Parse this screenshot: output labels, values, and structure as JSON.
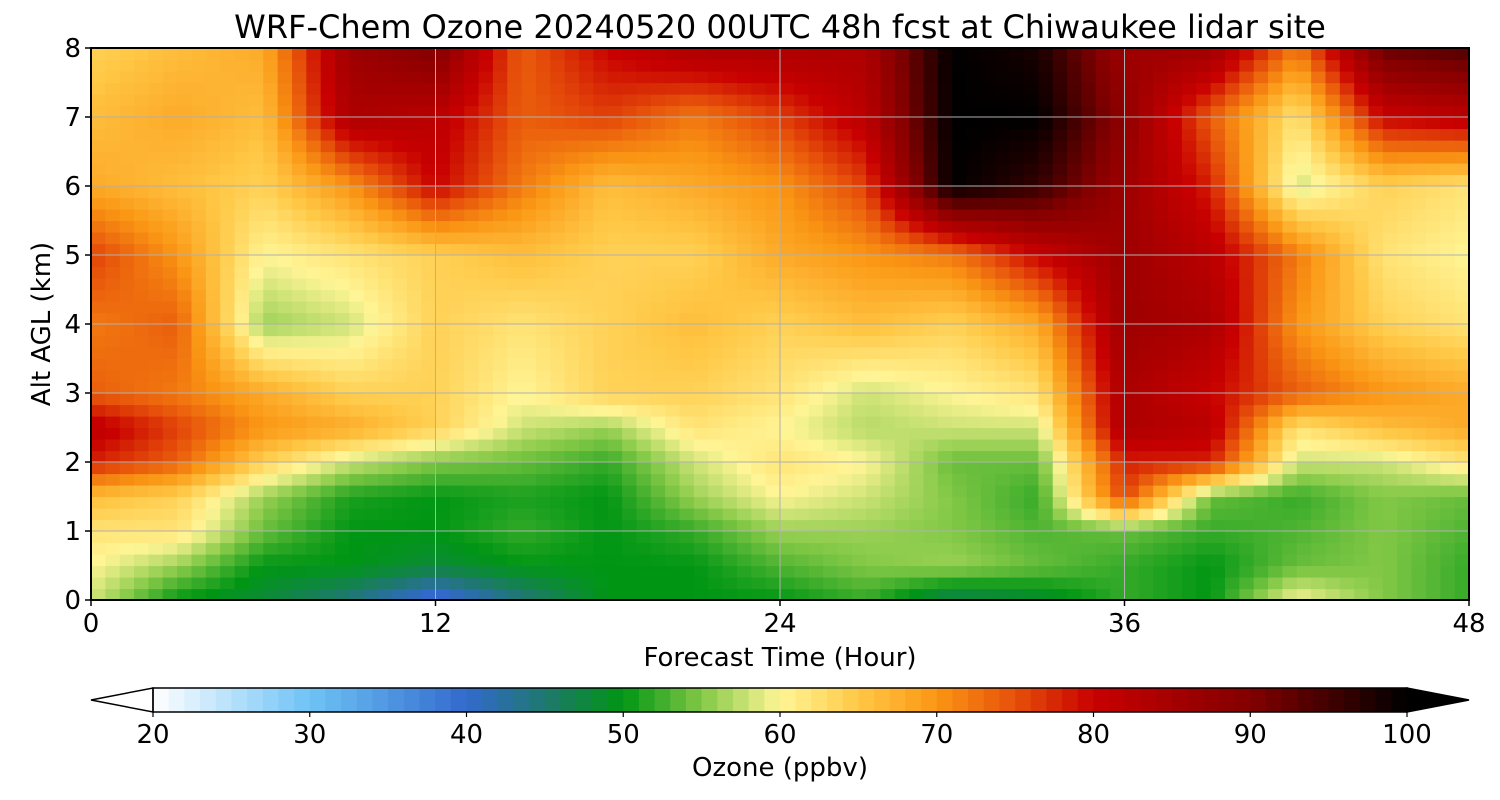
{
  "chart_data": {
    "type": "heatmap",
    "title": "WRF-Chem Ozone  20240520 00UTC 48h fcst at Chiwaukee lidar site",
    "xlabel": "Forecast Time (Hour)",
    "ylabel": "Alt AGL (km)",
    "xlim": [
      0,
      48
    ],
    "ylim": [
      0,
      8
    ],
    "xticks": [
      "0",
      "12",
      "24",
      "36",
      "48"
    ],
    "yticks": [
      "0",
      "1",
      "2",
      "3",
      "4",
      "5",
      "6",
      "7",
      "8"
    ],
    "grid": true,
    "x": [
      0,
      3,
      6,
      9,
      12,
      15,
      18,
      21,
      24,
      27,
      30,
      33,
      36,
      39,
      42,
      45,
      48
    ],
    "y": [
      0,
      0.5,
      1,
      1.5,
      2,
      2.5,
      3,
      4,
      5,
      6,
      7,
      8
    ],
    "z": [
      [
        58,
        50,
        48,
        44,
        38,
        44,
        50,
        50,
        50,
        52,
        46,
        48,
        52,
        50,
        60,
        55,
        52
      ],
      [
        60,
        56,
        50,
        50,
        48,
        50,
        50,
        50,
        53,
        55,
        56,
        54,
        52,
        50,
        54,
        55,
        52
      ],
      [
        62,
        62,
        54,
        50,
        50,
        52,
        50,
        52,
        56,
        56,
        55,
        53,
        54,
        52,
        53,
        55,
        53
      ],
      [
        66,
        64,
        56,
        51,
        50,
        51,
        50,
        56,
        60,
        58,
        55,
        52,
        76,
        54,
        52,
        55,
        54
      ],
      [
        78,
        74,
        64,
        58,
        55,
        54,
        52,
        58,
        62,
        60,
        54,
        54,
        78,
        78,
        58,
        58,
        62
      ],
      [
        82,
        76,
        70,
        68,
        64,
        58,
        56,
        62,
        60,
        57,
        58,
        58,
        84,
        82,
        62,
        66,
        68
      ],
      [
        74,
        72,
        68,
        64,
        64,
        60,
        64,
        64,
        62,
        58,
        60,
        62,
        84,
        80,
        74,
        70,
        68
      ],
      [
        72,
        74,
        56,
        58,
        64,
        62,
        64,
        66,
        64,
        66,
        64,
        68,
        86,
        84,
        70,
        64,
        62
      ],
      [
        76,
        70,
        60,
        62,
        64,
        66,
        64,
        64,
        68,
        70,
        72,
        80,
        86,
        82,
        72,
        62,
        60
      ],
      [
        68,
        66,
        64,
        70,
        80,
        72,
        66,
        68,
        70,
        76,
        100,
        96,
        86,
        78,
        58,
        64,
        62
      ],
      [
        66,
        68,
        66,
        84,
        82,
        74,
        76,
        72,
        76,
        82,
        100,
        100,
        88,
        74,
        62,
        80,
        82
      ],
      [
        64,
        66,
        68,
        86,
        90,
        74,
        80,
        84,
        84,
        84,
        100,
        98,
        86,
        86,
        72,
        92,
        94
      ]
    ],
    "colorbar": {
      "label": "Ozone  (ppbv)",
      "min": 20,
      "max": 100,
      "ticks": [
        "20",
        "30",
        "40",
        "50",
        "60",
        "70",
        "80",
        "90",
        "100"
      ],
      "extend": "both"
    }
  }
}
